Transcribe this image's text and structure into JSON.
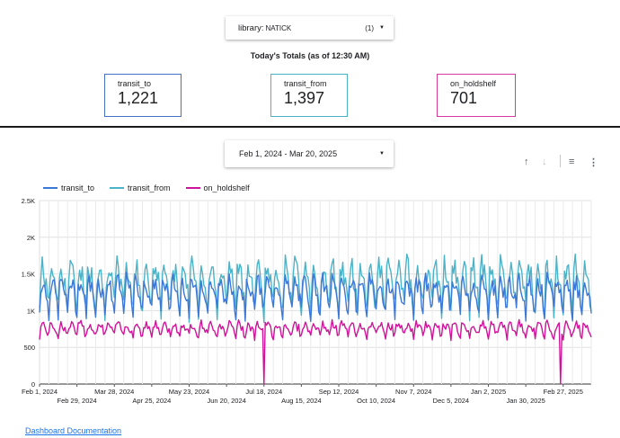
{
  "filter": {
    "label": "library:",
    "value": "NATICK",
    "count": "(1)"
  },
  "totals": {
    "title": "Today's Totals (as of 12:30 AM)",
    "cards": [
      {
        "label": "transit_to",
        "value": "1,221",
        "color": "#4472c4"
      },
      {
        "label": "transit_from",
        "value": "1,397",
        "color": "#4bb3c8"
      },
      {
        "label": "on_holdshelf",
        "value": "701",
        "color": "#d6399f"
      }
    ]
  },
  "date_range": {
    "label": "Feb 1, 2024 - Mar 20, 2025"
  },
  "toolbar": {
    "sort_up_icon": "↑",
    "sort_down_icon": "↓",
    "filter_icon": "≡",
    "more_icon": "⋮"
  },
  "footer": {
    "link_text": "Dashboard Documentation"
  },
  "chart_data": {
    "type": "line",
    "x_start": "2024-02-01",
    "x_end": "2025-03-20",
    "x_tick_labels": [
      "Feb 1, 2024",
      "Feb 29, 2024",
      "Mar 28, 2024",
      "Apr 25, 2024",
      "May 23, 2024",
      "Jun 20, 2024",
      "Jul 18, 2024",
      "Aug 15, 2024",
      "Sep 12, 2024",
      "Oct 10, 2024",
      "Nov 7, 2024",
      "Dec 5, 2024",
      "Jan 2, 2025",
      "Jan 30, 2025",
      "Feb 27, 2025"
    ],
    "y_tick_labels": [
      "0",
      "500",
      "1K",
      "1.5K",
      "2K",
      "2.5K"
    ],
    "ylim": [
      0,
      2500
    ],
    "legend_position": "top-left",
    "grid": true,
    "series": [
      {
        "name": "transit_to",
        "color": "#3c78d8"
      },
      {
        "name": "transit_from",
        "color": "#4bb3c8"
      },
      {
        "name": "on_holdshelf",
        "color": "#d0139b"
      }
    ]
  }
}
